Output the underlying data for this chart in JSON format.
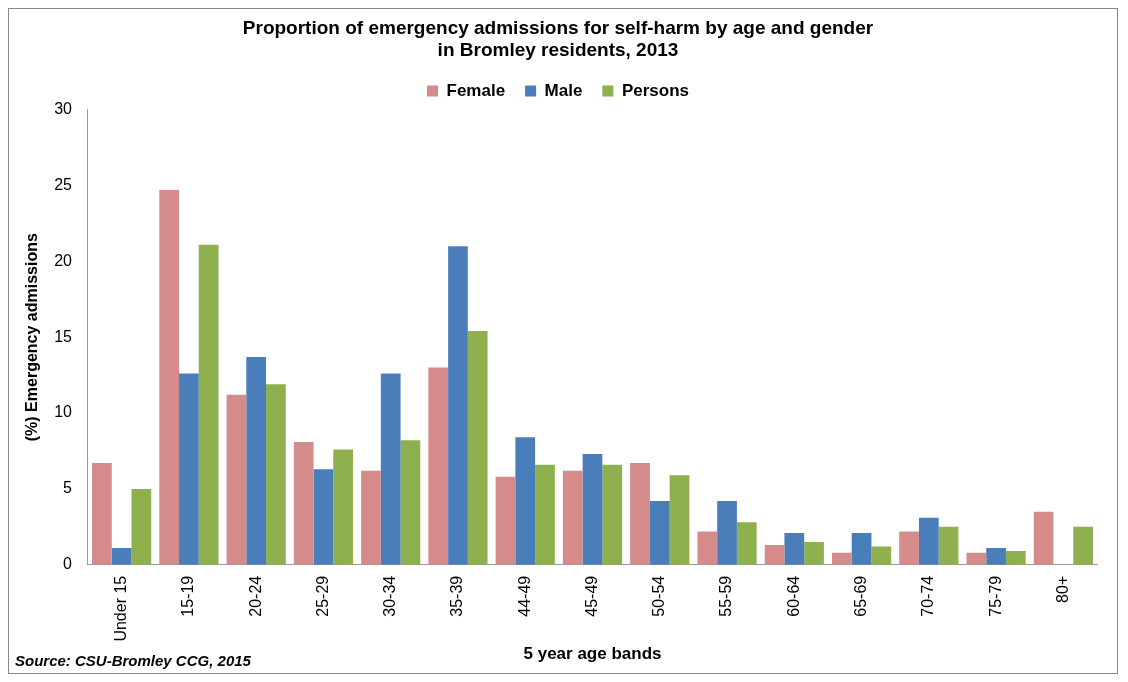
{
  "chart_data": {
    "type": "bar",
    "title": "Proportion of emergency admissions for self-harm by age and gender\nin Bromley residents, 2013",
    "xlabel": "5 year age bands",
    "ylabel": "(%) Emergency admissions",
    "categories": [
      "Under 15",
      "15-19",
      "20-24",
      "25-29",
      "30-34",
      "35-39",
      "44-49",
      "45-49",
      "50-54",
      "55-59",
      "60-64",
      "65-69",
      "70-74",
      "75-79",
      "80+"
    ],
    "series": [
      {
        "name": "Female",
        "color": "#d48b8a",
        "values": [
          6.7,
          24.7,
          11.2,
          8.1,
          6.2,
          13.0,
          5.8,
          6.2,
          6.7,
          2.2,
          1.3,
          0.8,
          2.2,
          0.8,
          3.5
        ]
      },
      {
        "name": "Male",
        "color": "#4a7ebb",
        "values": [
          1.1,
          12.6,
          13.7,
          6.3,
          12.6,
          21.0,
          8.4,
          7.3,
          4.2,
          4.2,
          2.1,
          2.1,
          3.1,
          1.1,
          0
        ]
      },
      {
        "name": "Persons",
        "color": "#8fb04f",
        "values": [
          5.0,
          21.1,
          11.9,
          7.6,
          8.2,
          15.4,
          6.6,
          6.6,
          5.9,
          2.8,
          1.5,
          1.2,
          2.5,
          0.9,
          2.5
        ]
      }
    ],
    "ylim": [
      0,
      30
    ],
    "yticks": [
      0,
      5,
      10,
      15,
      20,
      25,
      30
    ],
    "grid": false,
    "legend": "top",
    "annotations": [
      "Source: CSU-Bromley CCG, 2015"
    ]
  }
}
